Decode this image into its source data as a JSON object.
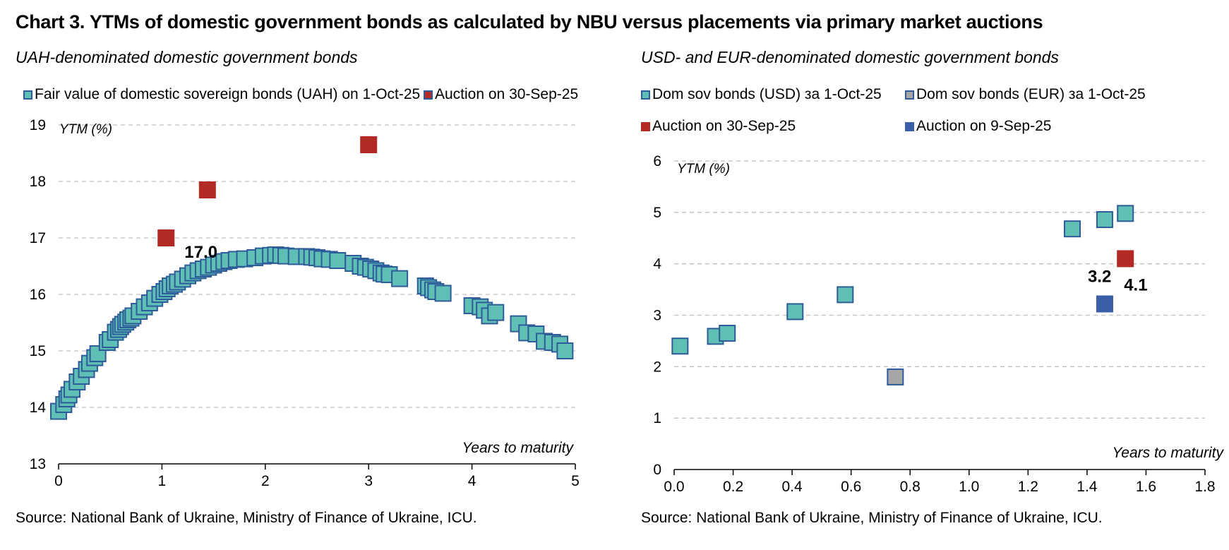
{
  "title": "Chart 3. YTMs of domestic government bonds as calculated by NBU versus placements via primary market auctions",
  "source_text": "Source: National Bank of Ukraine, Ministry of Finance of Ukraine, ICU.",
  "colors": {
    "fair_value": "#5fbfb4",
    "auction_red": "#b22a23",
    "auction_blue": "#3a5ea8",
    "eur_gray": "#a6a6a6",
    "marker_border": "#2e5c9a",
    "grid": "#bfbfbf"
  },
  "chart_data": [
    {
      "type": "scatter",
      "subtitle": "UAH-denominated domestic government bonds",
      "ylabel": "YTM (%)",
      "xlabel": "Years to maturity",
      "xlim": [
        0,
        5
      ],
      "ylim": [
        13,
        19
      ],
      "xticks": [
        "0",
        "1",
        "2",
        "3",
        "4",
        "5"
      ],
      "yticks": [
        "13",
        "14",
        "15",
        "16",
        "17",
        "18",
        "19"
      ],
      "grid": true,
      "series": [
        {
          "name": "Fair value of domestic sovereign bonds (UAH) on 1-Oct-25",
          "color_key": "fair_value",
          "points": [
            [
              0.0,
              13.93
            ],
            [
              0.05,
              14.05
            ],
            [
              0.08,
              14.15
            ],
            [
              0.1,
              14.22
            ],
            [
              0.13,
              14.32
            ],
            [
              0.18,
              14.45
            ],
            [
              0.22,
              14.55
            ],
            [
              0.27,
              14.67
            ],
            [
              0.3,
              14.78
            ],
            [
              0.35,
              14.88
            ],
            [
              0.38,
              14.95
            ],
            [
              0.47,
              15.15
            ],
            [
              0.5,
              15.2
            ],
            [
              0.55,
              15.33
            ],
            [
              0.58,
              15.38
            ],
            [
              0.6,
              15.43
            ],
            [
              0.62,
              15.47
            ],
            [
              0.65,
              15.51
            ],
            [
              0.67,
              15.55
            ],
            [
              0.7,
              15.58
            ],
            [
              0.72,
              15.62
            ],
            [
              0.78,
              15.7
            ],
            [
              0.83,
              15.78
            ],
            [
              0.88,
              15.85
            ],
            [
              0.93,
              15.93
            ],
            [
              0.98,
              16.0
            ],
            [
              1.02,
              16.05
            ],
            [
              1.05,
              16.1
            ],
            [
              1.08,
              16.15
            ],
            [
              1.12,
              16.18
            ],
            [
              1.15,
              16.22
            ],
            [
              1.2,
              16.27
            ],
            [
              1.25,
              16.33
            ],
            [
              1.3,
              16.38
            ],
            [
              1.35,
              16.42
            ],
            [
              1.4,
              16.45
            ],
            [
              1.45,
              16.48
            ],
            [
              1.5,
              16.52
            ],
            [
              1.55,
              16.55
            ],
            [
              1.6,
              16.58
            ],
            [
              1.65,
              16.6
            ],
            [
              1.72,
              16.62
            ],
            [
              1.8,
              16.63
            ],
            [
              1.9,
              16.65
            ],
            [
              1.98,
              16.68
            ],
            [
              2.05,
              16.69
            ],
            [
              2.1,
              16.7
            ],
            [
              2.15,
              16.69
            ],
            [
              2.2,
              16.68
            ],
            [
              2.3,
              16.67
            ],
            [
              2.4,
              16.67
            ],
            [
              2.45,
              16.66
            ],
            [
              2.5,
              16.65
            ],
            [
              2.55,
              16.63
            ],
            [
              2.62,
              16.62
            ],
            [
              2.7,
              16.6
            ],
            [
              2.85,
              16.55
            ],
            [
              2.92,
              16.5
            ],
            [
              2.97,
              16.48
            ],
            [
              3.02,
              16.45
            ],
            [
              3.07,
              16.42
            ],
            [
              3.12,
              16.38
            ],
            [
              3.15,
              16.36
            ],
            [
              3.2,
              16.35
            ],
            [
              3.3,
              16.28
            ],
            [
              3.55,
              16.15
            ],
            [
              3.58,
              16.12
            ],
            [
              3.62,
              16.08
            ],
            [
              3.65,
              16.05
            ],
            [
              3.72,
              16.02
            ],
            [
              4.0,
              15.8
            ],
            [
              4.08,
              15.78
            ],
            [
              4.12,
              15.72
            ],
            [
              4.17,
              15.62
            ],
            [
              4.23,
              15.68
            ],
            [
              4.45,
              15.48
            ],
            [
              4.53,
              15.32
            ],
            [
              4.62,
              15.3
            ],
            [
              4.7,
              15.17
            ],
            [
              4.78,
              15.15
            ],
            [
              4.85,
              15.12
            ],
            [
              4.9,
              15.0
            ]
          ]
        },
        {
          "name": "Auction on 30-Sep-25",
          "color_key": "auction_red",
          "points": [
            [
              1.04,
              17.0
            ],
            [
              1.44,
              17.85
            ],
            [
              3.0,
              18.65
            ]
          ]
        }
      ],
      "annotations": [
        {
          "text": "17.0",
          "x": 1.04,
          "y": 17.0
        }
      ]
    },
    {
      "type": "scatter",
      "subtitle": "USD- and EUR-denominated domestic government bonds",
      "ylabel": "YTM (%)",
      "xlabel": "Years to maturity",
      "xlim": [
        0,
        1.8
      ],
      "ylim": [
        0,
        6
      ],
      "xticks": [
        "0.0",
        "0.2",
        "0.4",
        "0.6",
        "0.8",
        "1.0",
        "1.2",
        "1.4",
        "1.6",
        "1.8"
      ],
      "yticks": [
        "0",
        "1",
        "2",
        "3",
        "4",
        "5",
        "6"
      ],
      "grid": true,
      "series": [
        {
          "name": "Dom sov bonds (USD) за 1-Oct-25",
          "color_key": "fair_value",
          "points": [
            [
              0.02,
              2.4
            ],
            [
              0.14,
              2.59
            ],
            [
              0.18,
              2.65
            ],
            [
              0.41,
              3.07
            ],
            [
              0.58,
              3.4
            ],
            [
              1.35,
              4.68
            ],
            [
              1.46,
              4.86
            ],
            [
              1.53,
              4.98
            ]
          ]
        },
        {
          "name": "Dom sov bonds (EUR) за 1-Oct-25",
          "color_key": "eur_gray",
          "points": [
            [
              0.75,
              1.8
            ]
          ]
        },
        {
          "name": "Auction on 30-Sep-25",
          "color_key": "auction_red",
          "points": [
            [
              1.53,
              4.1
            ]
          ]
        },
        {
          "name": "Auction on 9-Sep-25",
          "color_key": "auction_blue",
          "points": [
            [
              1.46,
              3.22
            ]
          ]
        }
      ],
      "annotations": [
        {
          "text": "3.2",
          "x": 1.46,
          "y": 3.22
        },
        {
          "text": "4.1",
          "x": 1.53,
          "y": 4.1
        }
      ]
    }
  ]
}
